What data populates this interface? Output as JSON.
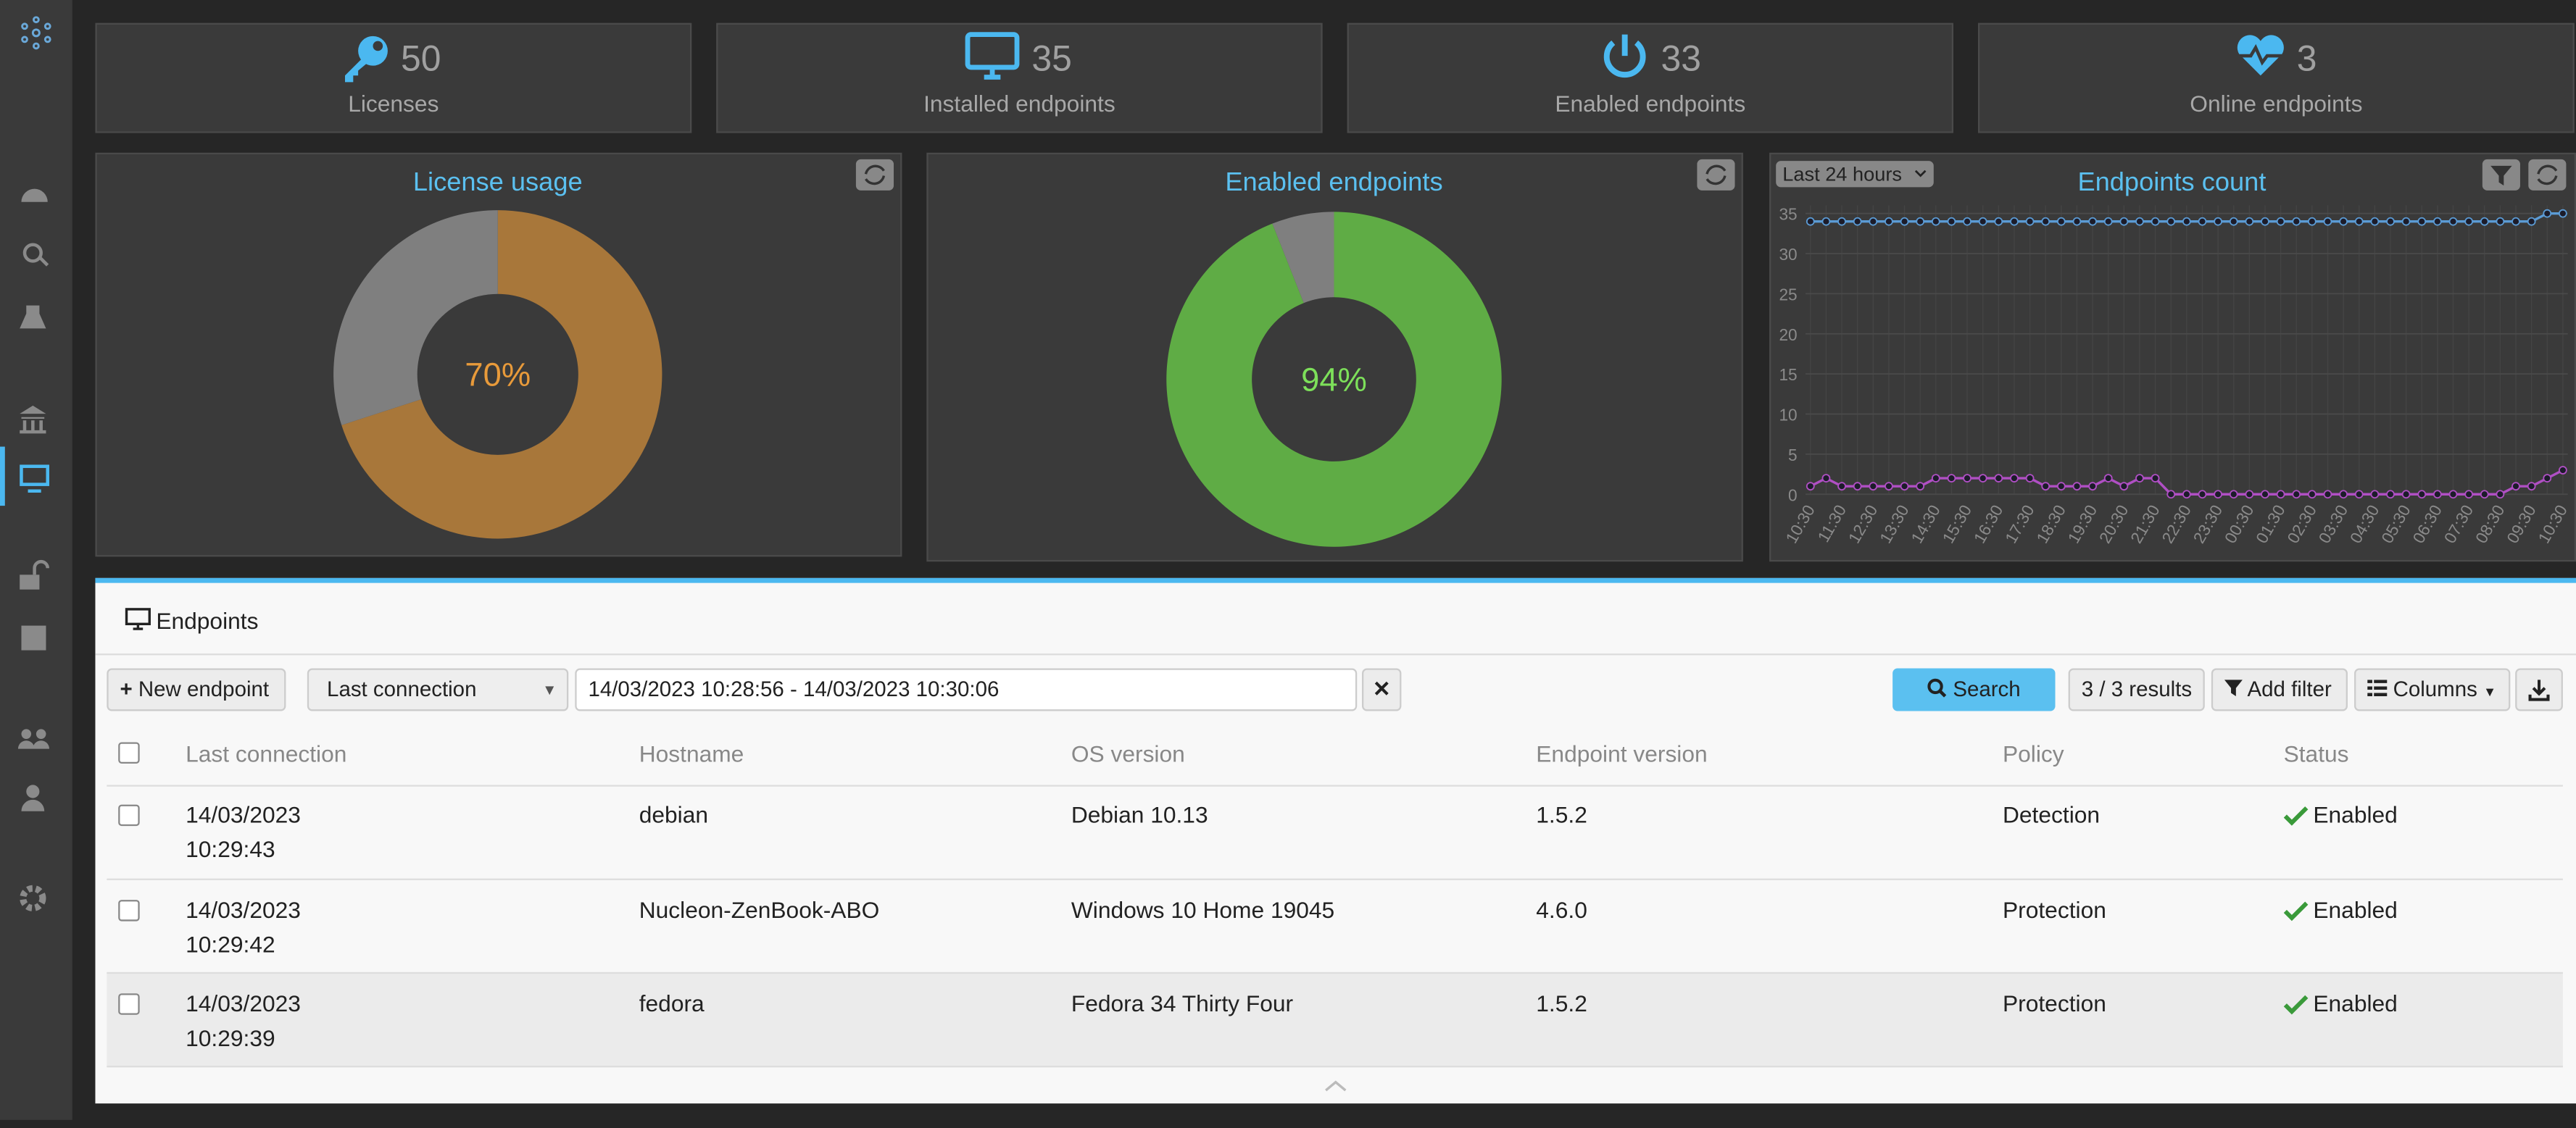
{
  "cards": [
    {
      "value": 50,
      "label": "Licenses"
    },
    {
      "value": 35,
      "label": "Installed endpoints"
    },
    {
      "value": 33,
      "label": "Enabled endpoints"
    },
    {
      "value": 3,
      "label": "Online endpoints"
    }
  ],
  "chart_data": [
    {
      "type": "pie",
      "title": "License usage",
      "values": [
        70,
        30
      ],
      "value_labels": [
        "70%",
        null
      ],
      "colors": [
        "#a8773a",
        "#7f7f7f"
      ]
    },
    {
      "type": "pie",
      "title": "Enabled endpoints",
      "values": [
        94,
        6
      ],
      "value_labels": [
        "94%",
        null
      ],
      "colors": [
        "#5fac45",
        "#7f7f7f"
      ]
    },
    {
      "type": "line",
      "title": "Endpoints count",
      "period": "Last 24 hours",
      "categories": [
        "10:30",
        null,
        "11:30",
        null,
        "12:30",
        null,
        "13:30",
        null,
        "14:30",
        null,
        "15:30",
        null,
        "16:30",
        null,
        "17:30",
        null,
        "18:30",
        null,
        "19:30",
        null,
        "20:30",
        null,
        "21:30",
        null,
        "22:30",
        null,
        "23:30",
        null,
        "00:30",
        null,
        "01:30",
        null,
        "02:30",
        null,
        "03:30",
        null,
        "04:30",
        null,
        "05:30",
        null,
        "06:30",
        null,
        "07:30",
        null,
        "08:30",
        null,
        "09:30",
        null,
        "10:30"
      ],
      "series": [
        {
          "color": "#5b9bd5",
          "values": [
            34,
            34,
            34,
            34,
            34,
            34,
            34,
            34,
            34,
            34,
            34,
            34,
            34,
            34,
            34,
            34,
            34,
            34,
            34,
            34,
            34,
            34,
            34,
            34,
            34,
            34,
            34,
            34,
            34,
            34,
            34,
            34,
            34,
            34,
            34,
            34,
            34,
            34,
            34,
            34,
            34,
            34,
            34,
            34,
            34,
            34,
            34,
            35,
            35
          ]
        },
        {
          "color": "#b04fc4",
          "values": [
            1,
            2,
            1,
            1,
            1,
            1,
            1,
            1,
            2,
            2,
            2,
            2,
            2,
            2,
            2,
            1,
            1,
            1,
            1,
            2,
            1,
            2,
            2,
            0,
            0,
            0,
            0,
            0,
            0,
            0,
            0,
            0,
            0,
            0,
            0,
            0,
            0,
            0,
            0,
            0,
            0,
            0,
            0,
            0,
            0,
            1,
            1,
            2,
            3
          ]
        }
      ],
      "ylim": [
        0,
        35
      ],
      "yticks": [
        0,
        5,
        10,
        15,
        20,
        25,
        30,
        35
      ],
      "grid": true
    }
  ],
  "panel": {
    "title": "Endpoints",
    "new_button": "New endpoint",
    "filter_field": "Last connection",
    "date_range": "14/03/2023 10:28:56 - 14/03/2023 10:30:06",
    "search": "Search",
    "results": "3 / 3 results",
    "add_filter": "Add filter",
    "columns": "Columns"
  },
  "table": {
    "headers": [
      "Last connection",
      "Hostname",
      "OS version",
      "Endpoint version",
      "Policy",
      "Status"
    ],
    "rows": [
      [
        "14/03/2023\n10:29:43",
        "debian",
        "Debian 10.13",
        "1.5.2",
        "Detection",
        "Enabled"
      ],
      [
        "14/03/2023\n10:29:42",
        "Nucleon-ZenBook-ABO",
        "Windows 10 Home 19045",
        "4.6.0",
        "Protection",
        "Enabled"
      ],
      [
        "14/03/2023\n10:29:39",
        "fedora",
        "Fedora 34 Thirty Four",
        "1.5.2",
        "Protection",
        "Enabled"
      ]
    ]
  }
}
